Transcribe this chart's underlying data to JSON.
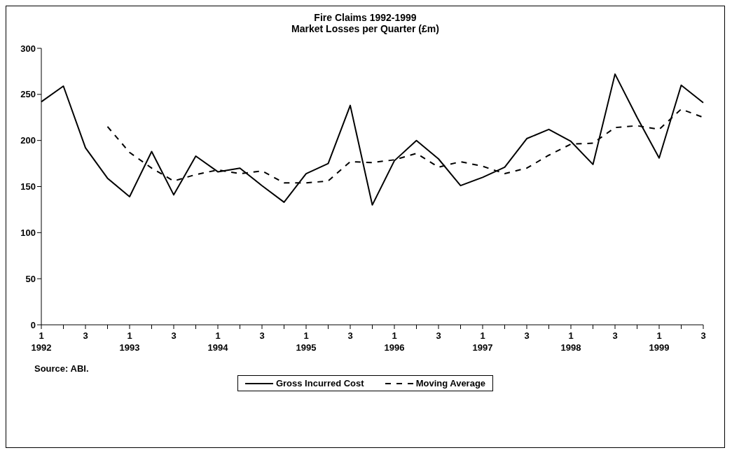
{
  "chart_data": {
    "type": "line",
    "title": "Fire Claims 1992-1999",
    "subtitle": "Market Losses per Quarter (£m)",
    "categories": [
      "1\n1992",
      null,
      "3",
      null,
      "1\n1993",
      null,
      "3",
      null,
      "1\n1994",
      null,
      "3",
      null,
      "1\n1995",
      null,
      "3",
      null,
      "1\n1996",
      null,
      "3",
      null,
      "1\n1997",
      null,
      "3",
      null,
      "1\n1998",
      null,
      "3",
      null,
      "1\n1999",
      null,
      "3"
    ],
    "series": [
      {
        "name": "Gross Incurred Cost",
        "color": "#000000",
        "line_style": "solid",
        "values": [
          242,
          259,
          192,
          159,
          139,
          188,
          141,
          183,
          166,
          170,
          151,
          133,
          164,
          175,
          238,
          130,
          178,
          200,
          180,
          151,
          160,
          171,
          202,
          212,
          199,
          174,
          272,
          225,
          181,
          260,
          241
        ]
      },
      {
        "name": "Moving Average",
        "color": "#000000",
        "line_style": "dashed",
        "values": [
          null,
          null,
          null,
          215,
          187,
          170,
          156,
          163,
          168,
          164,
          167,
          154,
          154,
          156,
          177,
          176,
          179,
          186,
          171,
          177,
          172,
          164,
          170,
          184,
          196,
          197,
          214,
          216,
          212,
          234,
          225
        ]
      }
    ],
    "ylim": [
      0,
      300
    ],
    "yticks": [
      0,
      50,
      100,
      150,
      200,
      250,
      300
    ],
    "grid": false,
    "legend": "bottom",
    "marker": "none",
    "annotations": [
      "Source: ABI."
    ]
  }
}
